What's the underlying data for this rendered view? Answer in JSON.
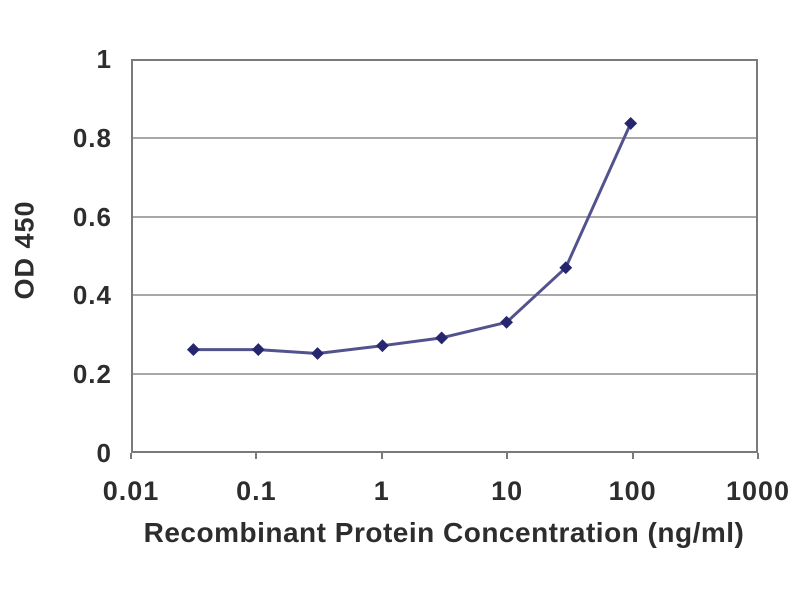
{
  "chart_data": {
    "type": "line",
    "title": "",
    "xlabel": "Recombinant Protein Concentration (ng/ml)",
    "ylabel": "OD 450",
    "x_scale": "log",
    "x": [
      0.03,
      0.1,
      0.3,
      1,
      3,
      10,
      30,
      100
    ],
    "series": [
      {
        "name": "OD 450",
        "values": [
          0.26,
          0.26,
          0.25,
          0.27,
          0.29,
          0.33,
          0.47,
          0.84
        ]
      }
    ],
    "xlim": [
      0.01,
      1000
    ],
    "ylim": [
      0,
      1
    ],
    "x_ticks": [
      "0.01",
      "0.1",
      "1",
      "10",
      "100",
      "1000"
    ],
    "y_ticks": [
      "0",
      "0.2",
      "0.4",
      "0.6",
      "0.8",
      "1"
    ],
    "grid": "horizontal-only",
    "legend_position": "none",
    "marker_shape": "diamond",
    "colors": {
      "line": "#52528e",
      "marker": "#26266e",
      "gridline": "#a8a8a8",
      "axis_border": "#7a7a7a",
      "text": "#2d2d2d",
      "background": "#ffffff"
    }
  }
}
